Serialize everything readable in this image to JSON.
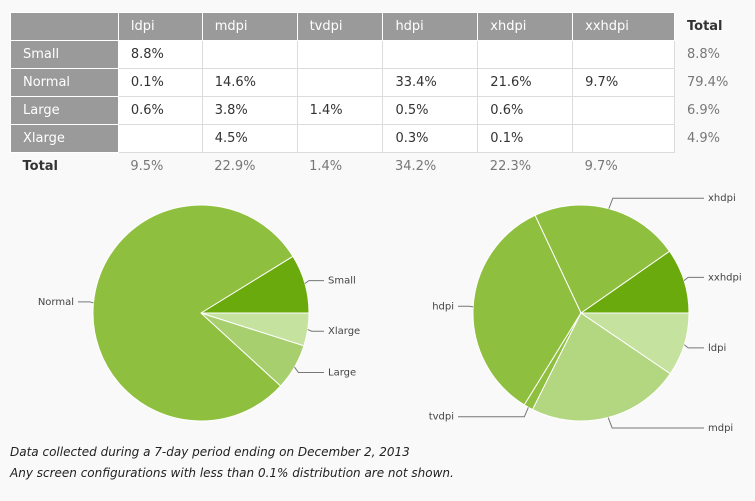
{
  "table": {
    "header": [
      null,
      "ldpi",
      "mdpi",
      "tvdpi",
      "hdpi",
      "xhdpi",
      "xxhdpi",
      "Total"
    ],
    "rows": [
      [
        "Small",
        "8.8%",
        null,
        null,
        null,
        null,
        null,
        "8.8%"
      ],
      [
        "Normal",
        "0.1%",
        "14.6%",
        null,
        "33.4%",
        "21.6%",
        "9.7%",
        "79.4%"
      ],
      [
        "Large",
        "0.6%",
        "3.8%",
        "1.4%",
        "0.5%",
        "0.6%",
        null,
        "6.9%"
      ],
      [
        "Xlarge",
        null,
        "4.5%",
        null,
        "0.3%",
        "0.1%",
        null,
        "4.9%"
      ]
    ],
    "total": [
      "Total",
      "9.5%",
      "22.9%",
      "1.4%",
      "34.2%",
      "22.3%",
      "9.7%"
    ]
  },
  "chart_data": [
    {
      "type": "pie",
      "categories": [
        "Small",
        "Normal",
        "Large",
        "Xlarge"
      ],
      "values": [
        8.8,
        79.4,
        6.9,
        4.9
      ],
      "colors": [
        "#6aaa0c",
        "#8fbf3f",
        "#a7cf6e",
        "#c6e29f"
      ]
    },
    {
      "type": "pie",
      "categories": [
        "xxhdpi",
        "xhdpi",
        "hdpi",
        "tvdpi",
        "mdpi",
        "ldpi"
      ],
      "values": [
        9.7,
        22.3,
        34.2,
        1.4,
        22.9,
        9.5
      ],
      "colors": [
        "#6aaa0c",
        "#8fbf3f",
        "#8fbf3f",
        "#8fbf3f",
        "#b3d681",
        "#c6e29f"
      ]
    }
  ],
  "notes": [
    "Data collected during a 7-day period ending on December 2, 2013",
    "Any screen configurations with less than 0.1% distribution are not shown."
  ]
}
